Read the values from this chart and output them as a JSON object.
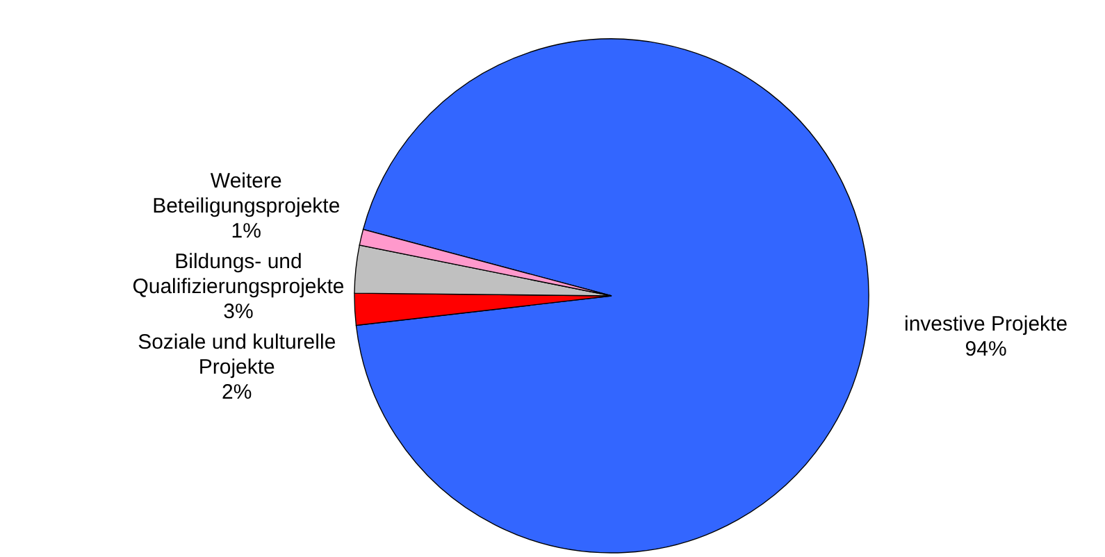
{
  "chart_data": {
    "type": "pie",
    "categories": [
      "investive Projekte",
      "Soziale und kulturelle Projekte",
      "Bildungs- und Qualifizierungsprojekte",
      "Weitere Beteiligungsprojekte"
    ],
    "values": [
      94,
      2,
      3,
      1
    ],
    "colors": [
      "#3366ff",
      "#ff0000",
      "#c0c0c0",
      "#ff99cc"
    ],
    "value_labels": [
      "94%",
      "2%",
      "3%",
      "1%"
    ]
  }
}
